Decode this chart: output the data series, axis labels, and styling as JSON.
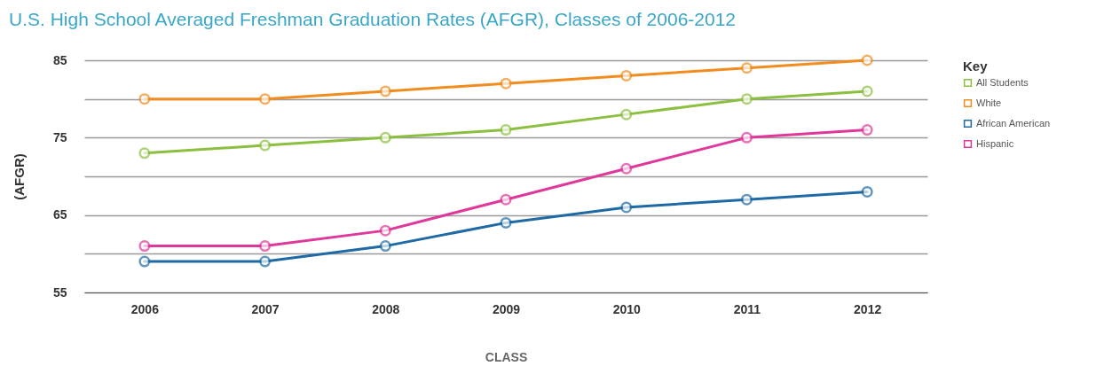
{
  "chart_data": {
    "type": "line",
    "title": "U.S. High School Averaged Freshman Graduation Rates (AFGR), Classes of 2006-2012",
    "xlabel": "CLASS",
    "ylabel": "(AFGR)",
    "legend_title": "Key",
    "categories": [
      "2006",
      "2007",
      "2008",
      "2009",
      "2010",
      "2011",
      "2012"
    ],
    "series": [
      {
        "name": "All Students",
        "color": "#8cbf3f",
        "values": [
          73,
          74,
          75,
          76,
          78,
          80,
          81
        ]
      },
      {
        "name": "White",
        "color": "#f28c1e",
        "values": [
          80,
          80,
          81,
          82,
          83,
          84,
          85
        ]
      },
      {
        "name": "African American",
        "color": "#1f6aa5",
        "values": [
          59,
          59,
          61,
          64,
          66,
          67,
          68
        ]
      },
      {
        "name": "Hispanic",
        "color": "#e0379a",
        "values": [
          61,
          61,
          63,
          67,
          71,
          75,
          76
        ]
      }
    ],
    "ylim": [
      55,
      85
    ],
    "yticks": [
      55,
      {
        "value": 60,
        "label": null
      },
      65,
      {
        "value": 70,
        "label": null
      },
      75,
      {
        "value": 80,
        "label": null
      },
      85
    ],
    "grid": "y",
    "legend": "right",
    "marker": "circle",
    "line_style": "solid"
  }
}
